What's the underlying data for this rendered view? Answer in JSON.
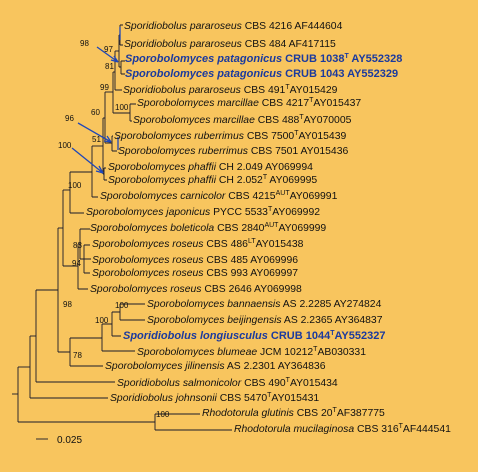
{
  "tree": {
    "taxa": [
      {
        "species": "Sporidiobolus pararoseus",
        "rest": "CBS 4216 AF444604",
        "bold": false
      },
      {
        "species": "Sporidiobolus pararoseus",
        "rest": "CBS 484 AF417115",
        "bold": false
      },
      {
        "species": "Sporobolomyces patagonicus",
        "rest": "CRUB 1038",
        "sup": "T",
        "rest2": " AY552328",
        "bold": true
      },
      {
        "species": "Sporobolomyces patagonicus",
        "rest": "CRUB 1043 AY552329",
        "bold": true
      },
      {
        "species": "Sporidiobolus pararoseus",
        "rest": "CBS 491",
        "sup": "T",
        "rest2": "AY015429",
        "bold": false
      },
      {
        "species": "Sporobolomyces marcillae",
        "rest": "CBS 4217",
        "sup": "T",
        "rest2": "AY015437",
        "bold": false
      },
      {
        "species": "Sporobolomyces marcillae",
        "rest": "CBS 488",
        "sup": "T",
        "rest2": "AY070005",
        "bold": false
      },
      {
        "species": "Sporobolomyces ruberrimus",
        "rest": "CBS 7500",
        "sup": "T",
        "rest2": "AY015439",
        "bold": false
      },
      {
        "species": "Sporobolomyces ruberrimus",
        "rest": "CBS 7501 AY015436",
        "bold": false
      },
      {
        "species": "Sporobolomyces phaffii",
        "rest": "CH 2.049 AY069994",
        "bold": false
      },
      {
        "species": "Sporobolomyces phaffii",
        "rest": "CH 2.052",
        "sup": "T",
        "rest2": " AY069995",
        "bold": false
      },
      {
        "species": "Sporobolomyces carnicolor",
        "rest": "CBS 4215",
        "sup": "AUT",
        "rest2": "AY069991",
        "bold": false
      },
      {
        "species": "Sporobolomyces japonicus",
        "rest": "PYCC 5533",
        "sup": "T",
        "rest2": "AY069992",
        "bold": false
      },
      {
        "species": "Sporobolomyces boleticola",
        "rest": "CBS 2840",
        "sup": "AUT",
        "rest2": "AY069999",
        "bold": false
      },
      {
        "species": "Sporobolomyces roseus",
        "rest": "CBS 486",
        "sup": "LT",
        "rest2": "AY015438",
        "bold": false
      },
      {
        "species": "Sporobolomyces roseus",
        "rest": "CBS 485 AY069996",
        "bold": false
      },
      {
        "species": "Sporobolomyces roseus",
        "rest": "CBS 993 AY069997",
        "bold": false
      },
      {
        "species": "Sporobolomyces roseus",
        "rest": "CBS 2646 AY069998",
        "bold": false
      },
      {
        "species": "Sporobolomyces bannaensis",
        "rest": "AS 2.2285 AY274824",
        "bold": false
      },
      {
        "species": "Sporobolomyces beijingensis",
        "rest": "AS 2.2365 AY364837",
        "bold": false
      },
      {
        "species": "Sporidiobolus longiusculus",
        "rest": "CRUB 1044",
        "sup": "T",
        "rest2": "AY552327",
        "bold": true
      },
      {
        "species": "Sporobolomyces blumeae",
        "rest": "JCM 10212",
        "sup": "T",
        "rest2": "AB030331",
        "bold": false
      },
      {
        "species": "Sporobolomyces jilinensis",
        "rest": "AS 2.2301 AY364836",
        "bold": false
      },
      {
        "species": "Sporidiobolus salmonicolor",
        "rest": "CBS 490",
        "sup": "T",
        "rest2": "AY015434",
        "bold": false
      },
      {
        "species": "Sporidiobolus johnsonii",
        "rest": "CBS 5470",
        "sup": "T",
        "rest2": "AY015431",
        "bold": false
      },
      {
        "species": "Rhodotorula glutinis",
        "rest": "CBS 20",
        "sup": "T",
        "rest2": "AF387775",
        "bold": false
      },
      {
        "species": "Rhodotorula mucilaginosa",
        "rest": "CBS 316",
        "sup": "T",
        "rest2": "AF444541",
        "bold": false
      }
    ],
    "bootstrap": [
      "98",
      "97",
      "81",
      "99",
      "100",
      "60",
      "96",
      "51",
      "100",
      "100",
      "83",
      "94",
      "100",
      "100",
      "98",
      "78",
      "100"
    ],
    "scale_label": "0.025"
  }
}
